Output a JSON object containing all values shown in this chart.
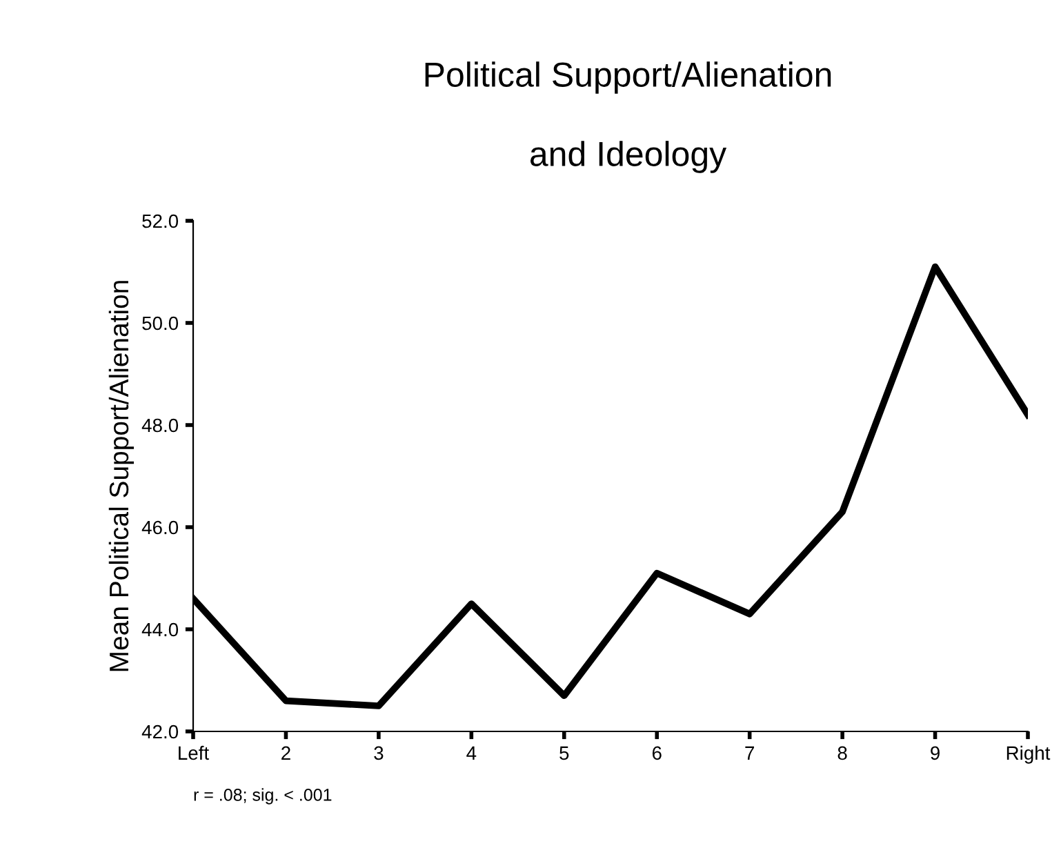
{
  "chart_data": {
    "type": "line",
    "title": "Political Support/Alienation\n\nand Ideology",
    "ylabel": "Mean Political Support/Alienation",
    "categories": [
      "Left",
      "2",
      "3",
      "4",
      "5",
      "6",
      "7",
      "8",
      "9",
      "Right"
    ],
    "series": [
      {
        "color": "#000000",
        "values": [
          44.6,
          42.6,
          42.5,
          44.5,
          42.7,
          45.1,
          44.3,
          46.3,
          51.1,
          48.2
        ]
      }
    ],
    "ylim": [
      42,
      52
    ],
    "yticks": [
      {
        "value": 42,
        "label": "42.0"
      },
      {
        "value": 44,
        "label": "44.0"
      },
      {
        "value": 46,
        "label": "46.0"
      },
      {
        "value": 48,
        "label": "48.0"
      },
      {
        "value": 50,
        "label": "50.0"
      },
      {
        "value": 52,
        "label": "52.0"
      }
    ],
    "grid": false,
    "legend": false,
    "marker": "none",
    "line_style": "solid",
    "annotations": [
      "r = .08; sig. < .001"
    ]
  }
}
